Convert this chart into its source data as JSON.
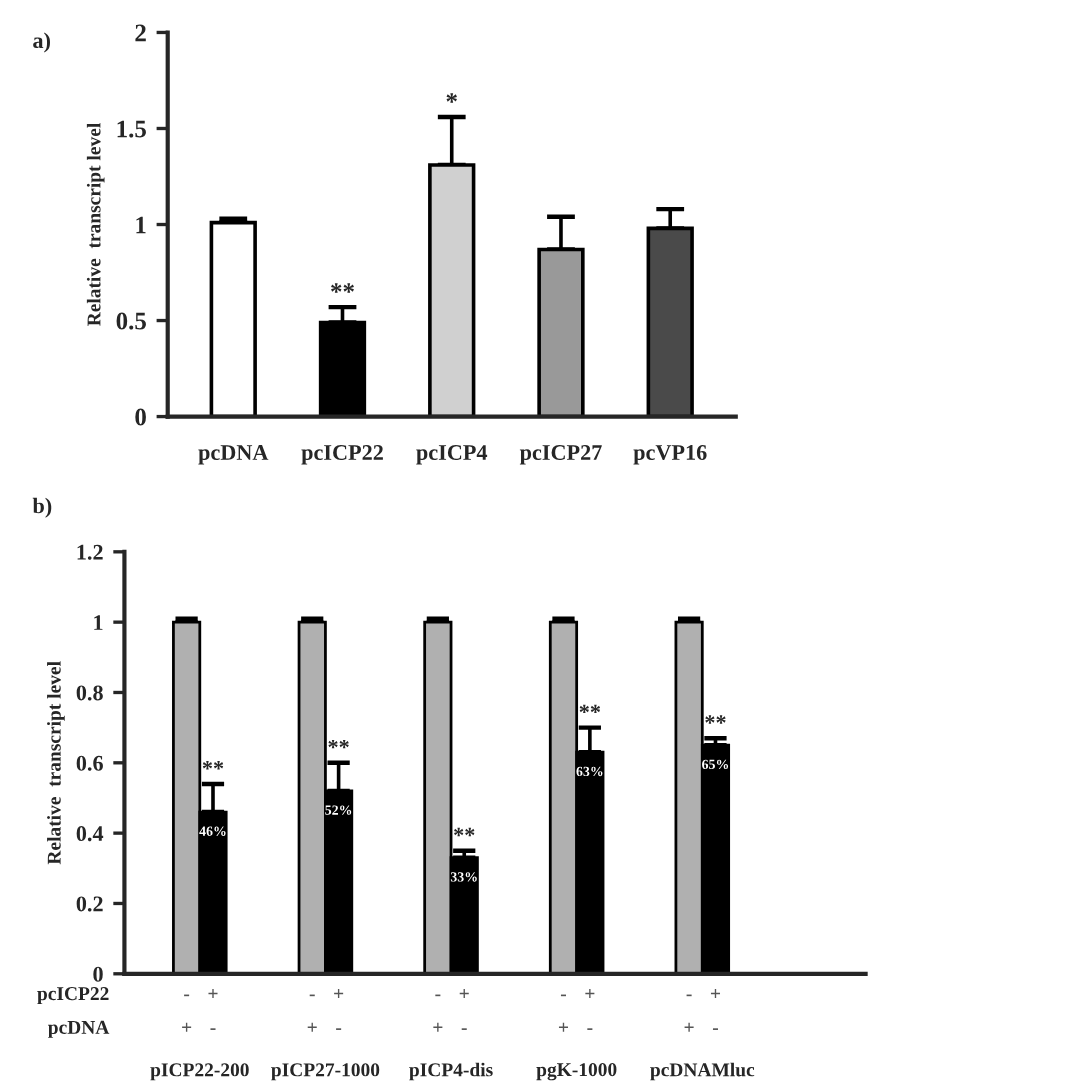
{
  "chart_data": [
    {
      "type": "bar",
      "title": "a)",
      "ylabel": "Relative  transcript level",
      "categories": [
        "pcDNA",
        "pcICP22",
        "pcICP4",
        "pcICP27",
        "pcVP16"
      ],
      "values": [
        1.01,
        0.49,
        1.31,
        0.87,
        0.98
      ],
      "colors": [
        "#ffffff",
        "#000000",
        "#d0d0d0",
        "#999999",
        "#4a4a4a"
      ],
      "errors": [
        [
          1.01,
          1.03
        ],
        [
          0.49,
          0.57
        ],
        [
          1.31,
          1.56
        ],
        [
          0.87,
          1.04
        ],
        [
          0.98,
          1.08
        ]
      ],
      "ylim": [
        0,
        2
      ],
      "yticks": [
        0,
        0.5,
        1,
        1.5,
        2
      ],
      "grid": false,
      "annotations": [
        {
          "text": "**",
          "x": "pcICP22",
          "y": 0.57
        },
        {
          "text": "*",
          "x": "pcICP4",
          "y": 1.56
        }
      ]
    },
    {
      "type": "bar",
      "title": "b)",
      "ylabel": "Relative  transcript level",
      "categories": [
        "pICP22-200",
        "pICP27-1000",
        "pICP4-dis",
        "pgK-1000",
        "pcDNAMluc"
      ],
      "series": [
        {
          "color": "#b0b0b0",
          "values": [
            1.0,
            1.0,
            1.0,
            1.0,
            1.0
          ],
          "errors": [
            [
              1.0,
              1.01
            ],
            [
              1.0,
              1.01
            ],
            [
              1.0,
              1.01
            ],
            [
              1.0,
              1.01
            ],
            [
              1.0,
              1.01
            ]
          ]
        },
        {
          "color": "#000000",
          "values": [
            0.46,
            0.52,
            0.33,
            0.63,
            0.65
          ],
          "errors": [
            [
              0.46,
              0.54
            ],
            [
              0.52,
              0.6
            ],
            [
              0.33,
              0.35
            ],
            [
              0.63,
              0.7
            ],
            [
              0.65,
              0.67
            ]
          ],
          "value_labels": [
            "46%",
            "52%",
            "33%",
            "63%",
            "65%"
          ]
        }
      ],
      "ylim": [
        0,
        1.2
      ],
      "yticks": [
        0,
        0.2,
        0.4,
        0.6,
        0.8,
        1,
        1.2
      ],
      "grid": false,
      "annotations": [
        {
          "text": "**",
          "x": "pICP22-200",
          "y": 0.54
        },
        {
          "text": "**",
          "x": "pICP27-1000",
          "y": 0.6
        },
        {
          "text": "**",
          "x": "pICP4-dis",
          "y": 0.35
        },
        {
          "text": "**",
          "x": "pgK-1000",
          "y": 0.7
        },
        {
          "text": "**",
          "x": "pcDNAMluc",
          "y": 0.67
        },
        "pcICP22",
        "pcDNA",
        "-",
        "+",
        "+",
        "-",
        "-",
        "+",
        "+",
        "-",
        "-",
        "+",
        "+",
        "-",
        "-",
        "+",
        "+",
        "-",
        "-",
        "+",
        "+",
        "-"
      ]
    }
  ]
}
